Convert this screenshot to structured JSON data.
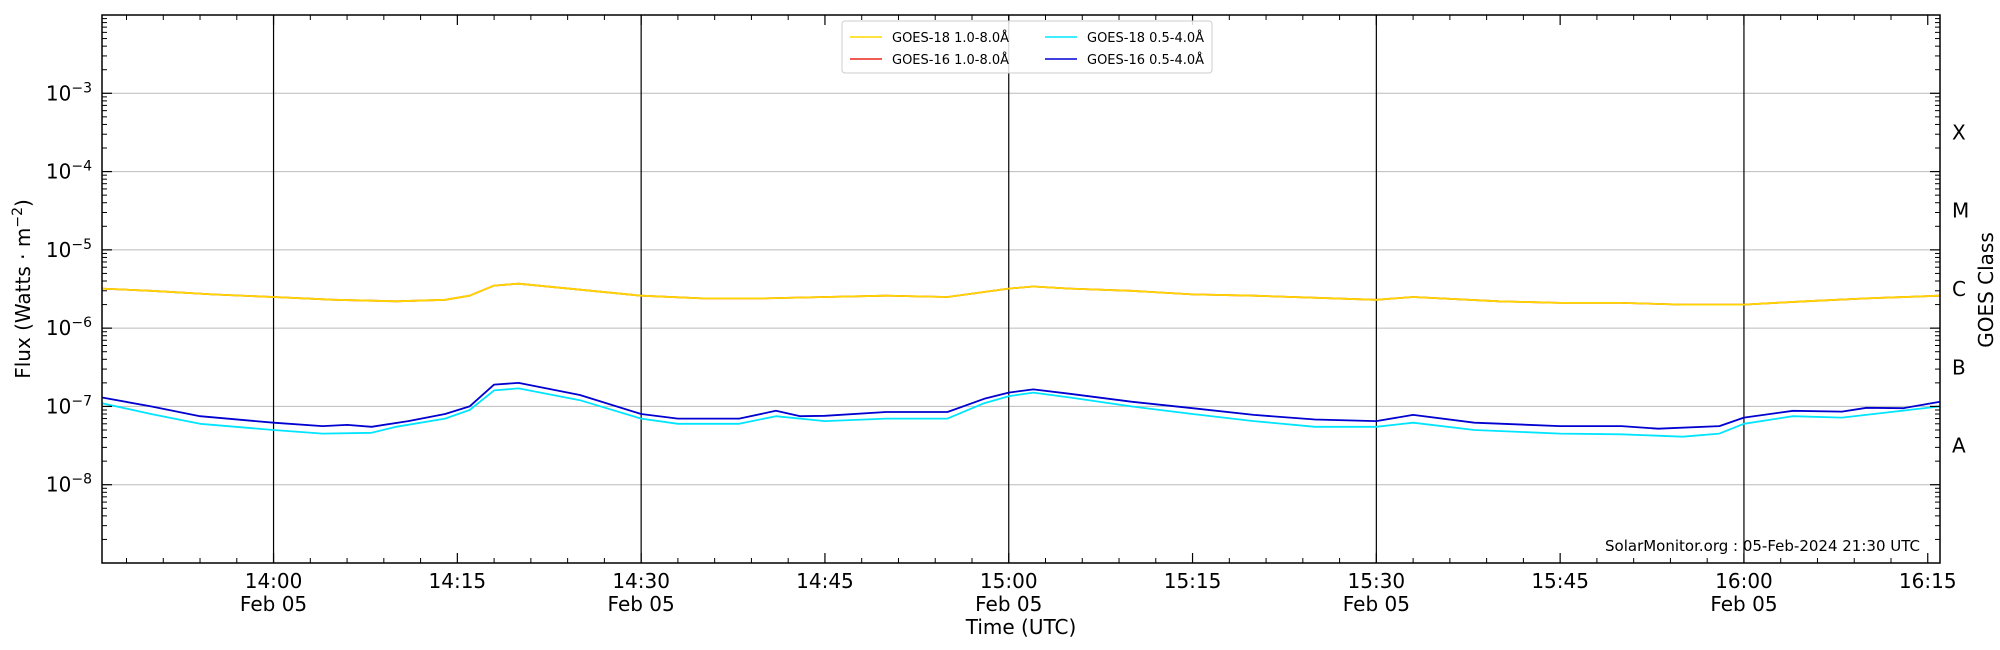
{
  "chart_data": {
    "type": "line",
    "xlabel": "Time (UTC)",
    "ylabel": "Flux (Watts · m",
    "ylabel_sup": "−2",
    "ylabel_close": ")",
    "right_label": "GOES Class",
    "scale": "log",
    "ylim_exp": [
      -9,
      -2
    ],
    "x_range": [
      "13:46",
      "16:16"
    ],
    "x_ticks": [
      {
        "time": "14:00",
        "label": "14:00",
        "sub": "Feb 05"
      },
      {
        "time": "14:15",
        "label": "14:15",
        "sub": ""
      },
      {
        "time": "14:30",
        "label": "14:30",
        "sub": "Feb 05"
      },
      {
        "time": "14:45",
        "label": "14:45",
        "sub": ""
      },
      {
        "time": "15:00",
        "label": "15:00",
        "sub": "Feb 05"
      },
      {
        "time": "15:15",
        "label": "15:15",
        "sub": ""
      },
      {
        "time": "15:30",
        "label": "15:30",
        "sub": "Feb 05"
      },
      {
        "time": "15:45",
        "label": "15:45",
        "sub": ""
      },
      {
        "time": "16:00",
        "label": "16:00",
        "sub": "Feb 05"
      },
      {
        "time": "16:15",
        "label": "16:15",
        "sub": ""
      }
    ],
    "day_lines": [
      "14:00",
      "14:30",
      "15:00",
      "15:30",
      "16:00"
    ],
    "y_ticks": [
      {
        "exp": -3,
        "base": "10",
        "sup": "−3"
      },
      {
        "exp": -4,
        "base": "10",
        "sup": "−4"
      },
      {
        "exp": -5,
        "base": "10",
        "sup": "−5"
      },
      {
        "exp": -6,
        "base": "10",
        "sup": "−6"
      },
      {
        "exp": -7,
        "base": "10",
        "sup": "−7"
      },
      {
        "exp": -8,
        "base": "10",
        "sup": "−8"
      }
    ],
    "goes_classes": [
      {
        "label": "X",
        "exp": -3.5
      },
      {
        "label": "M",
        "exp": -4.5
      },
      {
        "label": "C",
        "exp": -5.5
      },
      {
        "label": "B",
        "exp": -6.5
      },
      {
        "label": "A",
        "exp": -7.5
      }
    ],
    "credit": "SolarMonitor.org : 05-Feb-2024 21:30 UTC",
    "legend": [
      {
        "label": "GOES-18 1.0-8.0Å",
        "color": "#ffd700"
      },
      {
        "label": "GOES-16 1.0-8.0Å",
        "color": "#e8261a"
      },
      {
        "label": "GOES-18 0.5-4.0Å",
        "color": "#00e5ff"
      },
      {
        "label": "GOES-16 0.5-4.0Å",
        "color": "#0000d0"
      }
    ],
    "series": [
      {
        "name": "GOES-16 1.0-8.0Å",
        "color": "#e8261a",
        "points": [
          [
            "13:46",
            3.2e-06
          ],
          [
            "13:50",
            3e-06
          ],
          [
            "13:55",
            2.7e-06
          ],
          [
            "14:00",
            2.5e-06
          ],
          [
            "14:05",
            2.3e-06
          ],
          [
            "14:10",
            2.2e-06
          ],
          [
            "14:14",
            2.3e-06
          ],
          [
            "14:16",
            2.6e-06
          ],
          [
            "14:18",
            3.5e-06
          ],
          [
            "14:20",
            3.7e-06
          ],
          [
            "14:25",
            3.1e-06
          ],
          [
            "14:30",
            2.6e-06
          ],
          [
            "14:35",
            2.4e-06
          ],
          [
            "14:40",
            2.4e-06
          ],
          [
            "14:45",
            2.5e-06
          ],
          [
            "14:50",
            2.6e-06
          ],
          [
            "14:55",
            2.5e-06
          ],
          [
            "15:00",
            3.2e-06
          ],
          [
            "15:02",
            3.4e-06
          ],
          [
            "15:05",
            3.2e-06
          ],
          [
            "15:10",
            3e-06
          ],
          [
            "15:15",
            2.7e-06
          ],
          [
            "15:20",
            2.6e-06
          ],
          [
            "15:30",
            2.3e-06
          ],
          [
            "15:33",
            2.5e-06
          ],
          [
            "15:40",
            2.2e-06
          ],
          [
            "15:45",
            2.1e-06
          ],
          [
            "15:50",
            2.1e-06
          ],
          [
            "15:55",
            2e-06
          ],
          [
            "16:00",
            2e-06
          ],
          [
            "16:05",
            2.2e-06
          ],
          [
            "16:10",
            2.4e-06
          ],
          [
            "16:16",
            2.6e-06
          ]
        ]
      },
      {
        "name": "GOES-18 1.0-8.0Å",
        "color": "#ffd700",
        "points": [
          [
            "13:46",
            3.2e-06
          ],
          [
            "13:50",
            3e-06
          ],
          [
            "13:55",
            2.7e-06
          ],
          [
            "14:00",
            2.5e-06
          ],
          [
            "14:05",
            2.3e-06
          ],
          [
            "14:10",
            2.2e-06
          ],
          [
            "14:14",
            2.3e-06
          ],
          [
            "14:16",
            2.6e-06
          ],
          [
            "14:18",
            3.5e-06
          ],
          [
            "14:20",
            3.7e-06
          ],
          [
            "14:25",
            3.1e-06
          ],
          [
            "14:30",
            2.6e-06
          ],
          [
            "14:35",
            2.4e-06
          ],
          [
            "14:40",
            2.4e-06
          ],
          [
            "14:45",
            2.5e-06
          ],
          [
            "14:50",
            2.6e-06
          ],
          [
            "14:55",
            2.5e-06
          ],
          [
            "15:00",
            3.2e-06
          ],
          [
            "15:02",
            3.4e-06
          ],
          [
            "15:05",
            3.2e-06
          ],
          [
            "15:10",
            3e-06
          ],
          [
            "15:15",
            2.7e-06
          ],
          [
            "15:20",
            2.6e-06
          ],
          [
            "15:30",
            2.3e-06
          ],
          [
            "15:33",
            2.5e-06
          ],
          [
            "15:40",
            2.2e-06
          ],
          [
            "15:45",
            2.1e-06
          ],
          [
            "15:50",
            2.1e-06
          ],
          [
            "15:55",
            2e-06
          ],
          [
            "16:00",
            2e-06
          ],
          [
            "16:05",
            2.2e-06
          ],
          [
            "16:10",
            2.4e-06
          ],
          [
            "16:16",
            2.6e-06
          ]
        ]
      },
      {
        "name": "GOES-18 0.5-4.0Å",
        "color": "#00e5ff",
        "points": [
          [
            "13:46",
            1.1e-07
          ],
          [
            "13:50",
            8e-08
          ],
          [
            "13:54",
            6e-08
          ],
          [
            "14:00",
            5e-08
          ],
          [
            "14:04",
            4.5e-08
          ],
          [
            "14:08",
            4.6e-08
          ],
          [
            "14:10",
            5.5e-08
          ],
          [
            "14:14",
            7e-08
          ],
          [
            "14:16",
            9e-08
          ],
          [
            "14:18",
            1.6e-07
          ],
          [
            "14:20",
            1.7e-07
          ],
          [
            "14:25",
            1.2e-07
          ],
          [
            "14:30",
            7e-08
          ],
          [
            "14:33",
            6e-08
          ],
          [
            "14:38",
            6e-08
          ],
          [
            "14:41",
            7.5e-08
          ],
          [
            "14:45",
            6.5e-08
          ],
          [
            "14:50",
            7e-08
          ],
          [
            "14:55",
            7e-08
          ],
          [
            "14:58",
            1.1e-07
          ],
          [
            "15:00",
            1.35e-07
          ],
          [
            "15:02",
            1.5e-07
          ],
          [
            "15:05",
            1.3e-07
          ],
          [
            "15:10",
            1e-07
          ],
          [
            "15:15",
            8e-08
          ],
          [
            "15:20",
            6.5e-08
          ],
          [
            "15:25",
            5.5e-08
          ],
          [
            "15:30",
            5.5e-08
          ],
          [
            "15:33",
            6.2e-08
          ],
          [
            "15:38",
            5e-08
          ],
          [
            "15:45",
            4.5e-08
          ],
          [
            "15:50",
            4.4e-08
          ],
          [
            "15:55",
            4.1e-08
          ],
          [
            "15:58",
            4.5e-08
          ],
          [
            "16:00",
            6e-08
          ],
          [
            "16:04",
            7.5e-08
          ],
          [
            "16:08",
            7.2e-08
          ],
          [
            "16:12",
            8.5e-08
          ],
          [
            "16:16",
            1e-07
          ]
        ]
      },
      {
        "name": "GOES-16 0.5-4.0Å",
        "color": "#0000d0",
        "points": [
          [
            "13:46",
            1.3e-07
          ],
          [
            "13:50",
            1e-07
          ],
          [
            "13:54",
            7.5e-08
          ],
          [
            "14:00",
            6.2e-08
          ],
          [
            "14:04",
            5.6e-08
          ],
          [
            "14:06",
            5.8e-08
          ],
          [
            "14:08",
            5.5e-08
          ],
          [
            "14:11",
            6.5e-08
          ],
          [
            "14:14",
            8e-08
          ],
          [
            "14:16",
            1e-07
          ],
          [
            "14:18",
            1.9e-07
          ],
          [
            "14:20",
            2e-07
          ],
          [
            "14:25",
            1.4e-07
          ],
          [
            "14:30",
            8e-08
          ],
          [
            "14:33",
            7e-08
          ],
          [
            "14:38",
            7e-08
          ],
          [
            "14:41",
            8.8e-08
          ],
          [
            "14:43",
            7.5e-08
          ],
          [
            "14:45",
            7.6e-08
          ],
          [
            "14:50",
            8.5e-08
          ],
          [
            "14:55",
            8.5e-08
          ],
          [
            "14:58",
            1.25e-07
          ],
          [
            "15:00",
            1.5e-07
          ],
          [
            "15:02",
            1.65e-07
          ],
          [
            "15:05",
            1.45e-07
          ],
          [
            "15:10",
            1.15e-07
          ],
          [
            "15:15",
            9.5e-08
          ],
          [
            "15:20",
            7.8e-08
          ],
          [
            "15:25",
            6.8e-08
          ],
          [
            "15:30",
            6.5e-08
          ],
          [
            "15:33",
            7.8e-08
          ],
          [
            "15:38",
            6.2e-08
          ],
          [
            "15:45",
            5.6e-08
          ],
          [
            "15:50",
            5.6e-08
          ],
          [
            "15:53",
            5.2e-08
          ],
          [
            "15:58",
            5.6e-08
          ],
          [
            "16:00",
            7.2e-08
          ],
          [
            "16:04",
            8.8e-08
          ],
          [
            "16:08",
            8.6e-08
          ],
          [
            "16:10",
            9.6e-08
          ],
          [
            "16:13",
            9.5e-08
          ],
          [
            "16:16",
            1.15e-07
          ]
        ]
      }
    ]
  }
}
